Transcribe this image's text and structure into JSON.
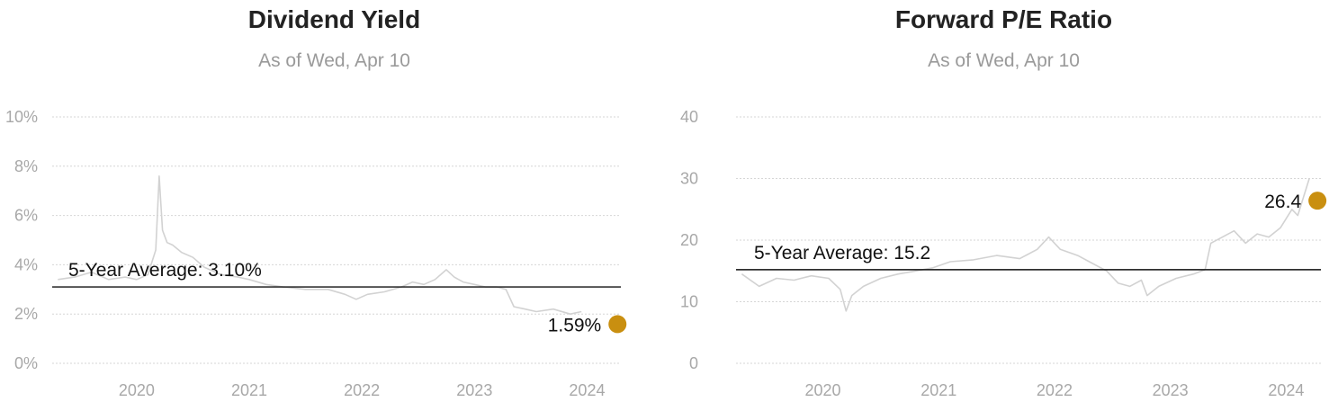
{
  "colors": {
    "line": "#d2d2d2",
    "grid": "#d6d6d6",
    "average": "#111111",
    "marker": "#c98f10"
  },
  "charts": [
    {
      "title": "Dividend Yield",
      "subtitle": "As of Wed, Apr 10"
    },
    {
      "title": "Forward P/E Ratio",
      "subtitle": "As of Wed, Apr 10"
    }
  ],
  "chart_data": [
    {
      "type": "line",
      "title": "Dividend Yield",
      "subtitle": "As of Wed, Apr 10",
      "x_ticks": [
        "2020",
        "2021",
        "2022",
        "2023",
        "2024"
      ],
      "y_ticks": [
        "0%",
        "2%",
        "4%",
        "6%",
        "8%",
        "10%"
      ],
      "ylim": [
        0,
        10
      ],
      "xlim": [
        2019.25,
        2024.3
      ],
      "grid": true,
      "average": {
        "value": 3.1,
        "label": "5-Year Average: 3.10%"
      },
      "last": {
        "x": 2024.27,
        "value": 1.59,
        "label": "1.59%"
      },
      "series": [
        {
          "x": [
            2019.3,
            2019.45,
            2019.6,
            2019.75,
            2019.9,
            2020.0,
            2020.1,
            2020.17,
            2020.2,
            2020.23,
            2020.27,
            2020.32,
            2020.4,
            2020.5,
            2020.6,
            2020.75,
            2020.9,
            2021.0,
            2021.15,
            2021.3,
            2021.5,
            2021.7,
            2021.85,
            2021.95,
            2022.05,
            2022.2,
            2022.35,
            2022.45,
            2022.55,
            2022.65,
            2022.75,
            2022.82,
            2022.9,
            2023.0,
            2023.1,
            2023.2,
            2023.28,
            2023.35,
            2023.45,
            2023.55,
            2023.7,
            2023.85,
            2023.95
          ],
          "y": [
            3.4,
            3.5,
            3.7,
            3.4,
            3.5,
            3.4,
            3.6,
            4.6,
            7.6,
            5.4,
            4.9,
            4.8,
            4.5,
            4.3,
            3.9,
            3.6,
            3.5,
            3.4,
            3.2,
            3.1,
            3.0,
            3.0,
            2.8,
            2.6,
            2.8,
            2.9,
            3.1,
            3.3,
            3.2,
            3.4,
            3.8,
            3.5,
            3.3,
            3.2,
            3.1,
            3.1,
            3.0,
            2.3,
            2.2,
            2.1,
            2.2,
            2.0,
            2.1
          ]
        }
      ]
    },
    {
      "type": "line",
      "title": "Forward P/E Ratio",
      "subtitle": "As of Wed, Apr 10",
      "x_ticks": [
        "2020",
        "2021",
        "2022",
        "2023",
        "2024"
      ],
      "y_ticks": [
        "0",
        "10",
        "20",
        "30",
        "40"
      ],
      "ylim": [
        0,
        40
      ],
      "xlim": [
        2019.25,
        2024.3
      ],
      "grid": true,
      "average": {
        "value": 15.2,
        "label": "5-Year Average: 15.2"
      },
      "last": {
        "x": 2024.27,
        "value": 26.4,
        "label": "26.4"
      },
      "series": [
        {
          "x": [
            2019.3,
            2019.45,
            2019.6,
            2019.75,
            2019.9,
            2020.05,
            2020.15,
            2020.2,
            2020.25,
            2020.35,
            2020.5,
            2020.65,
            2020.8,
            2020.95,
            2021.1,
            2021.3,
            2021.5,
            2021.7,
            2021.85,
            2021.95,
            2022.05,
            2022.2,
            2022.3,
            2022.45,
            2022.55,
            2022.65,
            2022.75,
            2022.8,
            2022.9,
            2023.05,
            2023.2,
            2023.3,
            2023.35,
            2023.45,
            2023.55,
            2023.65,
            2023.75,
            2023.85,
            2023.95,
            2024.05,
            2024.1,
            2024.15,
            2024.2
          ],
          "y": [
            14.5,
            12.5,
            13.8,
            13.5,
            14.2,
            13.8,
            12.0,
            8.5,
            11.0,
            12.5,
            13.8,
            14.5,
            15.0,
            15.5,
            16.5,
            16.8,
            17.5,
            17.0,
            18.5,
            20.5,
            18.5,
            17.5,
            16.5,
            15.0,
            13.0,
            12.5,
            13.5,
            11.0,
            12.5,
            13.8,
            14.5,
            15.2,
            19.5,
            20.5,
            21.5,
            19.5,
            21.0,
            20.5,
            22.0,
            25.0,
            24.0,
            27.0,
            30.0
          ]
        }
      ]
    }
  ]
}
